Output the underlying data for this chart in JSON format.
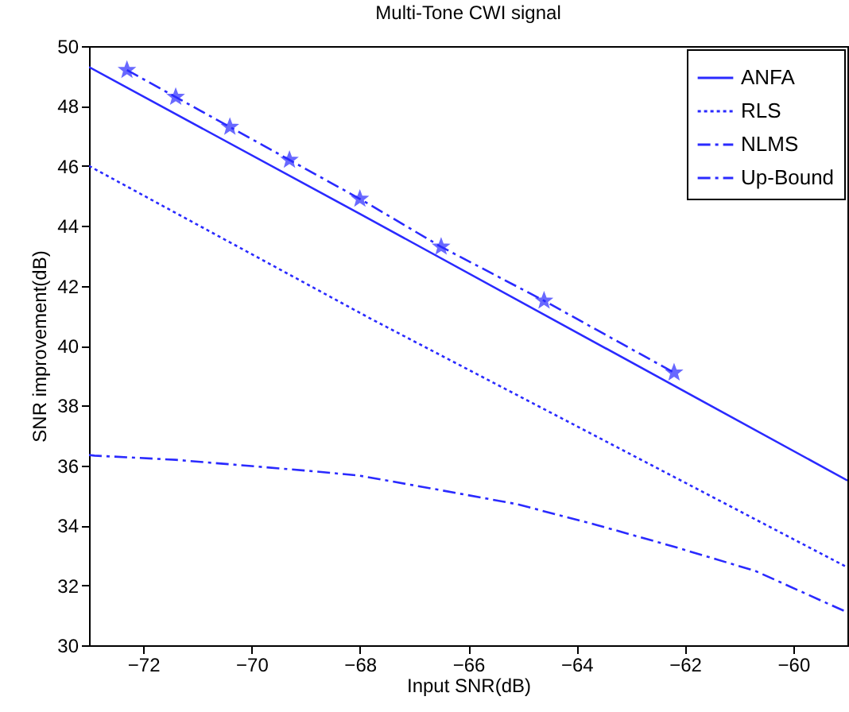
{
  "chart_data": {
    "type": "line",
    "title": "Multi-Tone CWI signal",
    "xlabel": "Input SNR(dB)",
    "ylabel": "SNR improvement(dB)",
    "xlim": [
      -73,
      -59
    ],
    "ylim": [
      30,
      50
    ],
    "xticks": [
      -72,
      -70,
      -68,
      -66,
      -64,
      -62,
      -60
    ],
    "yticks": [
      30,
      32,
      34,
      36,
      38,
      40,
      42,
      44,
      46,
      48,
      50
    ],
    "grid": false,
    "legend": "top right",
    "series": [
      {
        "name": "ANFA",
        "color": "#2a2aff",
        "line_style": "solid",
        "marker": "none",
        "x": [
          -73,
          -68,
          -59
        ],
        "values": [
          49.3,
          44.4,
          35.5
        ]
      },
      {
        "name": "RLS",
        "color": "#2a2aff",
        "line_style": "dotted",
        "marker": "none",
        "x": [
          -73,
          -67.8,
          -59
        ],
        "values": [
          46.0,
          40.9,
          32.6
        ]
      },
      {
        "name": "NLMS",
        "color": "#2a2aff",
        "line_style": "dashed",
        "marker": "none",
        "x": [
          -73,
          -72.9,
          -71.4,
          -70,
          -68.8,
          -68,
          -66.7,
          -65.1,
          -63.6,
          -62.2,
          -60.7,
          -59.3,
          -59
        ],
        "values": [
          36.35,
          36.33,
          36.19,
          35.98,
          35.8,
          35.66,
          35.24,
          34.71,
          34.0,
          33.29,
          32.48,
          31.34,
          31.1
        ]
      },
      {
        "name": "Up-Bound",
        "color": "#2a2aff",
        "line_style": "dashed",
        "marker": "star",
        "x": [
          -72.3,
          -71.4,
          -70.4,
          -69.3,
          -68,
          -66.5,
          -64.6,
          -62.2
        ],
        "values": [
          49.2,
          48.3,
          47.3,
          46.2,
          44.9,
          43.3,
          41.5,
          39.1
        ]
      }
    ]
  }
}
